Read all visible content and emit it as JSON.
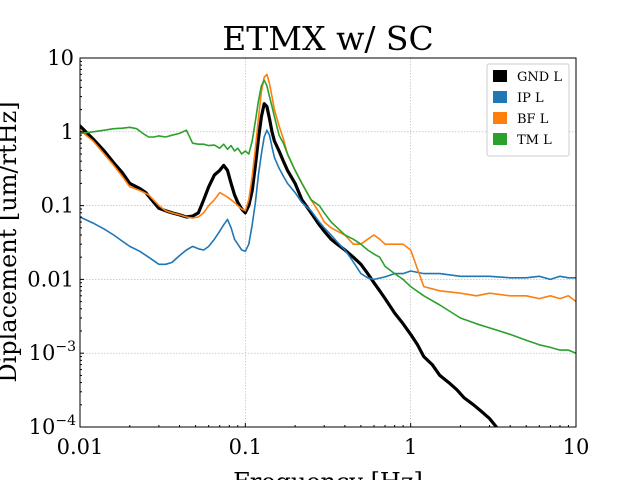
{
  "chart_data": {
    "type": "line",
    "title": "ETMX w/ SC",
    "xlabel": "Frequency [Hz]",
    "ylabel": "Diplacement [um/rtHz]",
    "xscale": "log",
    "yscale": "log",
    "xlim": [
      0.01,
      10
    ],
    "ylim": [
      0.0001,
      10
    ],
    "grid": true,
    "legend": "top-right",
    "x_ticks": [
      {
        "value": 0.01,
        "label": "0.01"
      },
      {
        "value": 0.1,
        "label": "0.1"
      },
      {
        "value": 1,
        "label": "1"
      },
      {
        "value": 10,
        "label": "10"
      }
    ],
    "y_ticks": [
      {
        "value": 0.0001,
        "base": "10",
        "exp": "−4",
        "label": ""
      },
      {
        "value": 0.001,
        "base": "10",
        "exp": "−3",
        "label": ""
      },
      {
        "value": 0.01,
        "label": "0.01"
      },
      {
        "value": 0.1,
        "label": "0.1"
      },
      {
        "value": 1,
        "label": "1"
      },
      {
        "value": 10,
        "label": "10"
      }
    ],
    "series": [
      {
        "name": "GND L",
        "color": "#000000",
        "width": 3.2,
        "x": [
          0.01,
          0.012,
          0.014,
          0.016,
          0.018,
          0.02,
          0.023,
          0.025,
          0.028,
          0.03,
          0.033,
          0.036,
          0.04,
          0.044,
          0.048,
          0.052,
          0.056,
          0.06,
          0.065,
          0.07,
          0.074,
          0.078,
          0.082,
          0.086,
          0.09,
          0.095,
          0.1,
          0.105,
          0.11,
          0.115,
          0.12,
          0.125,
          0.13,
          0.135,
          0.14,
          0.145,
          0.15,
          0.16,
          0.17,
          0.18,
          0.2,
          0.22,
          0.25,
          0.28,
          0.3,
          0.33,
          0.36,
          0.4,
          0.45,
          0.5,
          0.55,
          0.6,
          0.65,
          0.7,
          0.8,
          0.9,
          1.0,
          1.1,
          1.2,
          1.35,
          1.5,
          1.7,
          1.9,
          2.1,
          2.4,
          2.7,
          3.0,
          3.3
        ],
        "y": [
          1.2,
          0.8,
          0.55,
          0.38,
          0.28,
          0.2,
          0.17,
          0.15,
          0.11,
          0.092,
          0.085,
          0.08,
          0.075,
          0.07,
          0.072,
          0.08,
          0.12,
          0.18,
          0.26,
          0.3,
          0.35,
          0.3,
          0.2,
          0.14,
          0.11,
          0.09,
          0.08,
          0.1,
          0.16,
          0.35,
          0.8,
          1.6,
          2.4,
          2.2,
          1.5,
          1.0,
          0.75,
          0.55,
          0.4,
          0.3,
          0.2,
          0.12,
          0.08,
          0.055,
          0.045,
          0.035,
          0.03,
          0.025,
          0.02,
          0.016,
          0.012,
          0.009,
          0.007,
          0.0055,
          0.0035,
          0.0025,
          0.0018,
          0.0013,
          0.0009,
          0.0007,
          0.0005,
          0.0004,
          0.00032,
          0.00025,
          0.0002,
          0.00016,
          0.00013,
          0.0001
        ]
      },
      {
        "name": "IP L",
        "color": "#1f77b4",
        "width": 1.6,
        "x": [
          0.01,
          0.012,
          0.014,
          0.016,
          0.018,
          0.02,
          0.023,
          0.026,
          0.03,
          0.033,
          0.036,
          0.04,
          0.044,
          0.048,
          0.052,
          0.056,
          0.06,
          0.065,
          0.07,
          0.074,
          0.078,
          0.082,
          0.086,
          0.09,
          0.095,
          0.1,
          0.105,
          0.11,
          0.115,
          0.12,
          0.125,
          0.13,
          0.135,
          0.14,
          0.145,
          0.15,
          0.16,
          0.17,
          0.18,
          0.2,
          0.22,
          0.25,
          0.28,
          0.3,
          0.33,
          0.36,
          0.4,
          0.43,
          0.46,
          0.5,
          0.55,
          0.6,
          0.7,
          0.8,
          0.9,
          1.0,
          1.2,
          1.5,
          2.0,
          2.5,
          3.0,
          4.0,
          5.0,
          6.0,
          7.0,
          8.0,
          9.0,
          10.0
        ],
        "y": [
          0.07,
          0.058,
          0.048,
          0.04,
          0.033,
          0.028,
          0.024,
          0.02,
          0.016,
          0.016,
          0.017,
          0.021,
          0.025,
          0.028,
          0.026,
          0.025,
          0.028,
          0.035,
          0.045,
          0.055,
          0.065,
          0.05,
          0.035,
          0.03,
          0.025,
          0.024,
          0.03,
          0.055,
          0.11,
          0.26,
          0.5,
          0.85,
          1.05,
          0.9,
          0.62,
          0.45,
          0.32,
          0.25,
          0.2,
          0.15,
          0.11,
          0.085,
          0.06,
          0.05,
          0.04,
          0.032,
          0.025,
          0.02,
          0.016,
          0.012,
          0.0105,
          0.01,
          0.0108,
          0.012,
          0.012,
          0.013,
          0.012,
          0.012,
          0.011,
          0.011,
          0.011,
          0.0105,
          0.0105,
          0.011,
          0.01,
          0.011,
          0.0105,
          0.0105
        ]
      },
      {
        "name": "BF L",
        "color": "#ff7f0e",
        "width": 1.6,
        "x": [
          0.01,
          0.012,
          0.014,
          0.016,
          0.018,
          0.02,
          0.023,
          0.026,
          0.03,
          0.033,
          0.036,
          0.04,
          0.044,
          0.048,
          0.052,
          0.056,
          0.06,
          0.065,
          0.07,
          0.074,
          0.078,
          0.082,
          0.086,
          0.09,
          0.095,
          0.1,
          0.105,
          0.11,
          0.115,
          0.12,
          0.125,
          0.13,
          0.135,
          0.14,
          0.145,
          0.15,
          0.16,
          0.17,
          0.18,
          0.2,
          0.22,
          0.25,
          0.28,
          0.3,
          0.33,
          0.36,
          0.4,
          0.45,
          0.5,
          0.55,
          0.6,
          0.65,
          0.7,
          0.8,
          0.9,
          1.0,
          1.2,
          1.5,
          2.0,
          2.5,
          3.0,
          4.0,
          5.0,
          6.0,
          7.0,
          8.0,
          9.0,
          10.0
        ],
        "y": [
          1.05,
          0.75,
          0.5,
          0.35,
          0.25,
          0.18,
          0.16,
          0.14,
          0.1,
          0.085,
          0.08,
          0.075,
          0.07,
          0.068,
          0.07,
          0.08,
          0.1,
          0.12,
          0.15,
          0.14,
          0.13,
          0.12,
          0.11,
          0.1,
          0.09,
          0.085,
          0.12,
          0.25,
          0.6,
          1.5,
          3.5,
          5.5,
          6.0,
          4.5,
          3.0,
          2.0,
          1.2,
          0.8,
          0.5,
          0.3,
          0.2,
          0.12,
          0.08,
          0.06,
          0.05,
          0.045,
          0.04,
          0.03,
          0.03,
          0.035,
          0.04,
          0.035,
          0.03,
          0.03,
          0.03,
          0.025,
          0.008,
          0.007,
          0.0065,
          0.006,
          0.0065,
          0.006,
          0.006,
          0.0055,
          0.006,
          0.0055,
          0.006,
          0.005
        ]
      },
      {
        "name": "TM L",
        "color": "#2ca02c",
        "width": 1.6,
        "x": [
          0.01,
          0.012,
          0.014,
          0.016,
          0.018,
          0.02,
          0.022,
          0.024,
          0.026,
          0.028,
          0.03,
          0.033,
          0.036,
          0.04,
          0.044,
          0.048,
          0.052,
          0.056,
          0.06,
          0.065,
          0.07,
          0.074,
          0.078,
          0.082,
          0.086,
          0.09,
          0.095,
          0.1,
          0.105,
          0.11,
          0.115,
          0.12,
          0.125,
          0.13,
          0.135,
          0.14,
          0.145,
          0.15,
          0.16,
          0.17,
          0.18,
          0.2,
          0.22,
          0.25,
          0.28,
          0.3,
          0.33,
          0.36,
          0.4,
          0.45,
          0.5,
          0.55,
          0.6,
          0.65,
          0.7,
          0.8,
          0.9,
          1.0,
          1.2,
          1.5,
          2.0,
          2.5,
          3.0,
          4.0,
          5.0,
          6.0,
          7.0,
          8.0,
          9.0,
          10.0
        ],
        "y": [
          0.95,
          1.0,
          1.05,
          1.1,
          1.12,
          1.15,
          1.1,
          0.95,
          0.85,
          0.85,
          0.88,
          0.85,
          0.9,
          0.95,
          1.05,
          0.7,
          0.68,
          0.68,
          0.65,
          0.66,
          0.6,
          0.68,
          0.58,
          0.65,
          0.55,
          0.6,
          0.5,
          0.55,
          0.5,
          0.75,
          1.4,
          2.6,
          4.2,
          5.0,
          4.2,
          3.0,
          2.2,
          1.6,
          0.9,
          0.7,
          0.5,
          0.3,
          0.2,
          0.12,
          0.1,
          0.08,
          0.06,
          0.05,
          0.04,
          0.035,
          0.03,
          0.025,
          0.022,
          0.02,
          0.015,
          0.012,
          0.01,
          0.008,
          0.006,
          0.0045,
          0.003,
          0.0025,
          0.0022,
          0.0018,
          0.0015,
          0.0013,
          0.0012,
          0.0011,
          0.0011,
          0.001
        ]
      }
    ]
  }
}
